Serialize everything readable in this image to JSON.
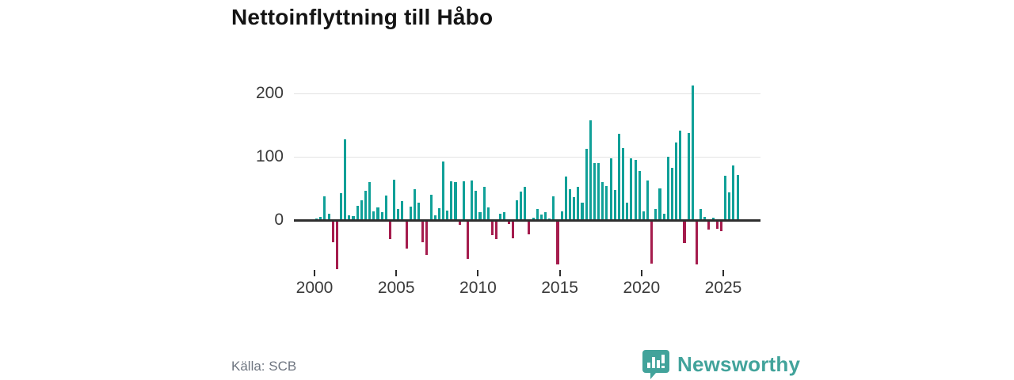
{
  "title": "Nettoinflyttning till Håbo",
  "source": "Källa: SCB",
  "branding": {
    "name": "Newsworthy",
    "logo_icon": "speech-bubble-bar-chart-icon"
  },
  "colors": {
    "positive_bar": "#10a098",
    "negative_bar": "#a51c4d",
    "axis": "#2e2e2e",
    "grid": "#e3e3e3",
    "title_text": "#141414",
    "tick_text": "#3a3a3a",
    "source_text": "#6e7580",
    "brand": "#42a39b"
  },
  "chart_data": {
    "type": "bar",
    "title": "Nettoinflyttning till Håbo",
    "xlabel": "",
    "ylabel": "",
    "x_unit": "quarter",
    "x_start": "2000-Q1",
    "x_end": "2025-Q4",
    "x_tick_labels": [
      "2000",
      "2005",
      "2010",
      "2015",
      "2020",
      "2025"
    ],
    "y_ticks": [
      0,
      100,
      200
    ],
    "ylim": [
      -90,
      230
    ],
    "grid": true,
    "legend": "none",
    "series": [
      {
        "year": 2000,
        "q": [
          2,
          5,
          37,
          10
        ]
      },
      {
        "year": 2001,
        "q": [
          -32,
          -75,
          42,
          128
        ]
      },
      {
        "year": 2002,
        "q": [
          7,
          6,
          22,
          31
        ]
      },
      {
        "year": 2003,
        "q": [
          46,
          60,
          14,
          20
        ]
      },
      {
        "year": 2004,
        "q": [
          12,
          39,
          -27,
          64
        ]
      },
      {
        "year": 2005,
        "q": [
          18,
          30,
          -43,
          21
        ]
      },
      {
        "year": 2006,
        "q": [
          49,
          27,
          -32,
          -52
        ]
      },
      {
        "year": 2007,
        "q": [
          40,
          8,
          19,
          93
        ]
      },
      {
        "year": 2008,
        "q": [
          15,
          61,
          60,
          -5
        ]
      },
      {
        "year": 2009,
        "q": [
          61,
          -59,
          62,
          46
        ]
      },
      {
        "year": 2010,
        "q": [
          13,
          52,
          20,
          -21
        ]
      },
      {
        "year": 2011,
        "q": [
          -28,
          10,
          13,
          -4
        ]
      },
      {
        "year": 2012,
        "q": [
          -26,
          31,
          45,
          53
        ]
      },
      {
        "year": 2013,
        "q": [
          -20,
          4,
          18,
          9
        ]
      },
      {
        "year": 2014,
        "q": [
          12,
          2,
          38,
          -67
        ]
      },
      {
        "year": 2015,
        "q": [
          14,
          69,
          49,
          36
        ]
      },
      {
        "year": 2016,
        "q": [
          52,
          28,
          113,
          157
        ]
      },
      {
        "year": 2017,
        "q": [
          90,
          90,
          60,
          54
        ]
      },
      {
        "year": 2018,
        "q": [
          97,
          48,
          136,
          114
        ]
      },
      {
        "year": 2019,
        "q": [
          28,
          97,
          95,
          77
        ]
      },
      {
        "year": 2020,
        "q": [
          14,
          62,
          -66,
          18
        ]
      },
      {
        "year": 2021,
        "q": [
          50,
          10,
          100,
          82
        ]
      },
      {
        "year": 2022,
        "q": [
          123,
          141,
          -34,
          137
        ]
      },
      {
        "year": 2023,
        "q": [
          213,
          -68,
          18,
          5
        ]
      },
      {
        "year": 2024,
        "q": [
          -13,
          4,
          -11,
          -15
        ]
      },
      {
        "year": 2025,
        "q": [
          70,
          44,
          86,
          71
        ]
      }
    ]
  }
}
